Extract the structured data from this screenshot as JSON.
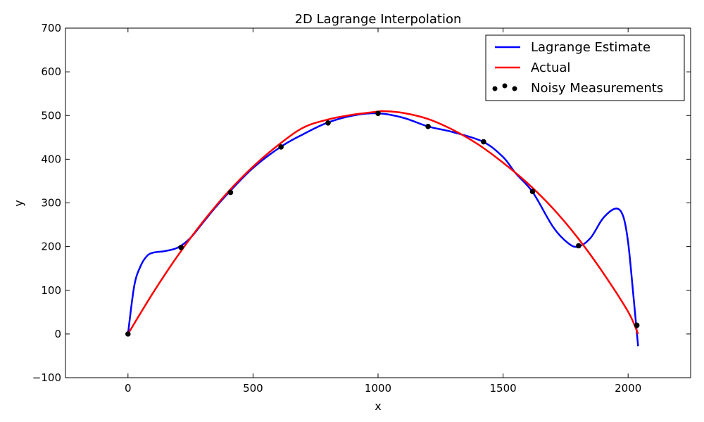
{
  "chart_data": {
    "type": "line",
    "title": "2D Lagrange Interpolation",
    "xlabel": "x",
    "ylabel": "y",
    "xlim": [
      -250,
      2250
    ],
    "ylim": [
      -100,
      700
    ],
    "xticks": [
      0,
      500,
      1000,
      1500,
      2000
    ],
    "yticks": [
      -100,
      0,
      100,
      200,
      300,
      400,
      500,
      600,
      700
    ],
    "xtick_labels": [
      "0",
      "500",
      "1000",
      "1500",
      "2000"
    ],
    "ytick_labels": [
      "−100",
      "0",
      "100",
      "200",
      "300",
      "400",
      "500",
      "600",
      "700"
    ],
    "grid": false,
    "legend_position": "top-right",
    "series": [
      {
        "name": "Lagrange Estimate",
        "kind": "line",
        "color": "#0000ff",
        "x": [
          0,
          25,
          50,
          75,
          100,
          150,
          200,
          250,
          300,
          350,
          405,
          500,
          610,
          700,
          795,
          900,
          1000,
          1100,
          1200,
          1300,
          1420,
          1500,
          1550,
          1618,
          1700,
          1760,
          1800,
          1850,
          1900,
          1950,
          1980,
          2000,
          2020,
          2040
        ],
        "y": [
          0,
          110,
          155,
          178,
          186,
          190,
          198,
          220,
          255,
          290,
          325,
          380,
          428,
          457,
          483,
          500,
          505,
          495,
          475,
          462,
          440,
          405,
          368,
          325,
          245,
          208,
          200,
          220,
          265,
          287,
          270,
          210,
          95,
          -28
        ]
      },
      {
        "name": "Actual",
        "kind": "line",
        "color": "#ff0000",
        "x": [
          0,
          100,
          200,
          300,
          400,
          500,
          600,
          700,
          800,
          900,
          1000,
          1020,
          1100,
          1200,
          1300,
          1400,
          1500,
          1600,
          1700,
          1800,
          1900,
          2000,
          2040
        ],
        "y": [
          0,
          94,
          180,
          257,
          325,
          383,
          432,
          472,
          491,
          502,
          509,
          510,
          506,
          492,
          467,
          434,
          392,
          344,
          287,
          219,
          140,
          51,
          0
        ]
      },
      {
        "name": "Noisy Measurements",
        "kind": "scatter",
        "color": "#000000",
        "x": [
          0,
          212,
          410,
          612,
          800,
          1000,
          1200,
          1422,
          1618,
          1802,
          2035
        ],
        "y": [
          0,
          198,
          324,
          428,
          483,
          505,
          475,
          440,
          326,
          202,
          20
        ]
      }
    ]
  }
}
